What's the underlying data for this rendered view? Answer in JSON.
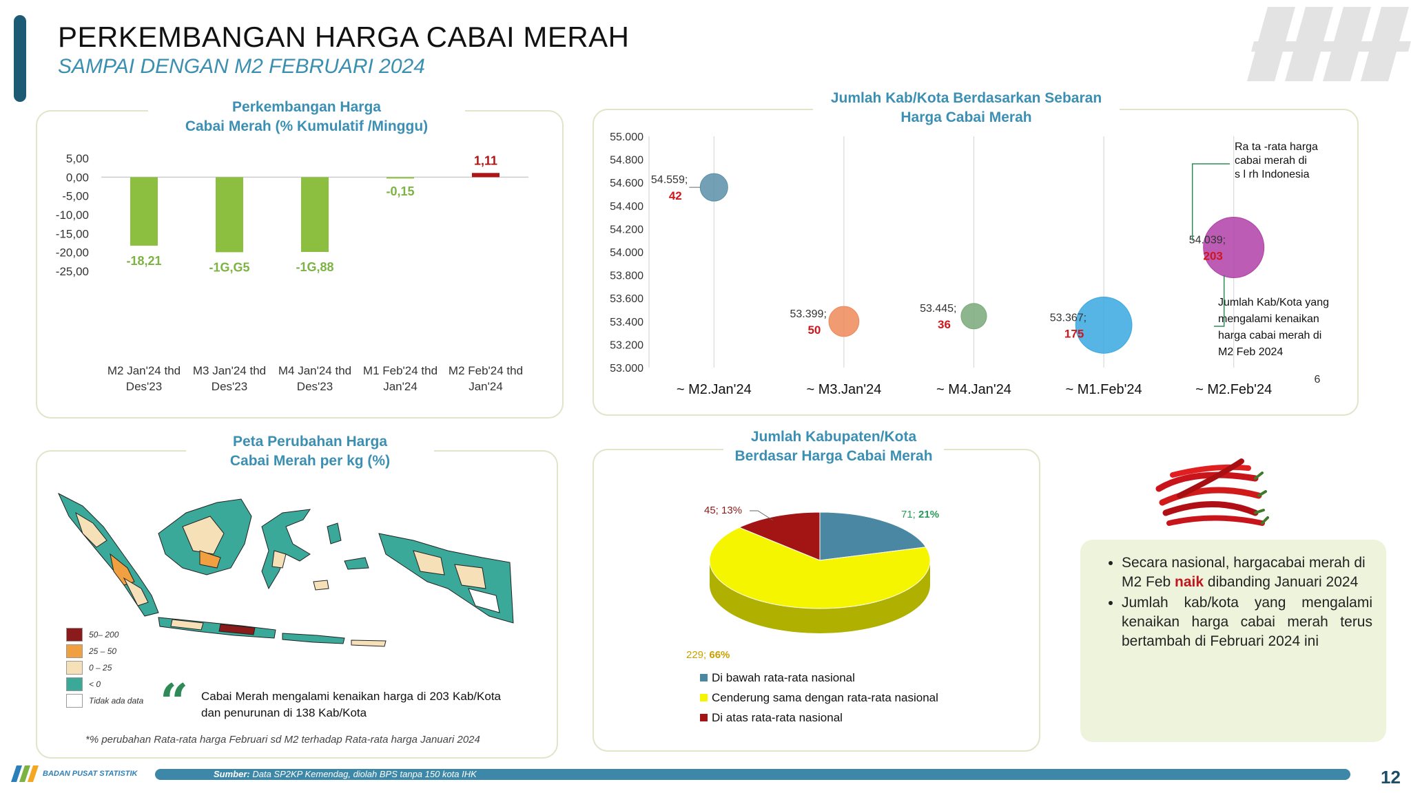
{
  "header": {
    "title": "PERKEMBANGAN HARGA CABAI MERAH",
    "subtitle": "SAMPAI DENGAN M2 FEBRUARI 2024"
  },
  "bar_panel": {
    "title_line1": "Perkembangan Harga",
    "title_line2": "Cabai Merah (% Kumulatif /Minggu)"
  },
  "bubble_panel": {
    "title_line1": "Jumlah Kab/Kota Berdasarkan Sebaran",
    "title_line2": "Harga Cabai Merah",
    "corner_number": "6",
    "annotation_avg": [
      "Ra ta -rata harga",
      "cabai merah di",
      "s l rh Indonesia"
    ],
    "annotation_count": [
      "Jumlah Kab/Kota yang",
      "mengalami kenaikan",
      "harga cabai merah di",
      "M2 Feb 2024"
    ]
  },
  "map_panel": {
    "title_line1": "Peta Perubahan Harga",
    "title_line2": "Cabai Merah per kg (%)",
    "legend": [
      {
        "label": "50– 200",
        "color": "#8b1a1a"
      },
      {
        "label": "25 – 50",
        "color": "#f0a040"
      },
      {
        "label": "0 – 25",
        "color": "#f5e0b8"
      },
      {
        "label": "< 0",
        "color": "#3aa99a"
      },
      {
        "label": "Tidak ada data",
        "color": "#ffffff"
      }
    ],
    "quote": "Cabai Merah mengalami kenaikan harga di 203 Kab/Kota dan penurunan di 138 Kab/Kota",
    "footnote": "*% perubahan Rata-rata harga Februari sd M2 terhadap Rata-rata harga Januari 2024"
  },
  "pie_panel": {
    "title_line1": "Jumlah Kabupaten/Kota",
    "title_line2": "Berdasar Harga Cabai Merah"
  },
  "notes": {
    "bullet1_a": "Secara nasional, hargacabai merah di M2  Feb ",
    "bullet1_hl": "naik",
    "bullet1_b": " dibanding Januari 2024",
    "bullet2": "Jumlah kab/kota yang mengalami kenaikan harga cabai merah terus bertambah di Februari 2024 ini"
  },
  "footer": {
    "org": "BADAN PUSAT STATISTIK",
    "source_bold": "Sumber:",
    "source": " Data SP2KP Kemendag, diolah BPS tanpa 150 kota IHK",
    "page": "12"
  },
  "chart_data": [
    {
      "type": "bar",
      "categories": [
        [
          "M2 Jan'24 thd",
          "Des'23"
        ],
        [
          "M3 Jan'24 thd",
          "Des'23"
        ],
        [
          "M4 Jan'24 thd",
          "Des'23"
        ],
        [
          "M1 Feb'24 thd",
          "Jan'24"
        ],
        [
          "M2 Feb'24 thd",
          "Jan'24"
        ]
      ],
      "values": [
        -18.21,
        -19.95,
        -19.88,
        -0.15,
        1.11
      ],
      "data_labels": [
        "-18,21",
        "-1G,G5",
        "-1G,88",
        "-0,15",
        "1,11"
      ],
      "colors": [
        "#8cbf3f",
        "#8cbf3f",
        "#8cbf3f",
        "#8cbf3f",
        "#b01515"
      ],
      "label_colors": [
        "#7cb342",
        "#7cb342",
        "#7cb342",
        "#7cb342",
        "#b01515"
      ],
      "yticks": [
        "5,00",
        "0,00",
        "-5,00",
        "-10,00",
        "-15,00",
        "-20,00",
        "-25,00"
      ],
      "ylim": [
        -25,
        5
      ]
    },
    {
      "type": "scatter",
      "x": [
        "~ M2.Jan'24",
        "~ M3.Jan'24",
        "~ M4.Jan'24",
        "~ M1.Feb'24",
        "~ M2.Feb'24"
      ],
      "y": [
        54559,
        53399,
        53445,
        53367,
        54039
      ],
      "y_labels": [
        "54.559;",
        "53.399;",
        "53.445;",
        "53.367;",
        "54.039;"
      ],
      "sizes": [
        42,
        50,
        36,
        175,
        203
      ],
      "colors": [
        "#5b8fa8",
        "#ee8a5a",
        "#7aa97a",
        "#3aa8e0",
        "#b040a8"
      ],
      "yticks": [
        "55.000",
        "54.800",
        "54.600",
        "54.400",
        "54.200",
        "54.000",
        "53.800",
        "53.600",
        "53.400",
        "53.200",
        "53.000"
      ],
      "ylim": [
        53000,
        55000
      ]
    },
    {
      "type": "pie",
      "slices": [
        {
          "label": "Di bawah rata-rata nasional",
          "value": 71,
          "pct": "21%",
          "text": "71; ",
          "color": "#4a87a3"
        },
        {
          "label": "Cenderung sama dengan rata-rata nasional",
          "value": 229,
          "pct": "66%",
          "text": "229; ",
          "color": "#f5f500"
        },
        {
          "label": "Di atas rata-rata nasional",
          "value": 45,
          "pct": "13%",
          "text": "45; 13%",
          "color": "#a31515"
        }
      ]
    }
  ]
}
